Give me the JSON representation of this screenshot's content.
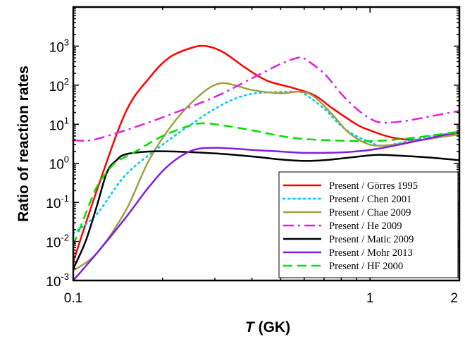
{
  "chart_data": {
    "type": "line",
    "xscale": "log",
    "yscale": "log",
    "xlim": [
      0.1,
      2
    ],
    "ylim": [
      0.001,
      10000
    ],
    "xlabel_italic": "T",
    "xlabel_rest": " (GK)",
    "ylabel": "Ratio of reaction rates",
    "grid": false,
    "legend_position": "bottom-right",
    "x_ticks": [
      {
        "value": 0.1,
        "label": "0.1"
      },
      {
        "value": 1,
        "label": "1"
      },
      {
        "value": 2,
        "label": "2"
      }
    ],
    "y_ticks": [
      {
        "value": 0.001,
        "base": "10",
        "exp": "-3"
      },
      {
        "value": 0.01,
        "base": "10",
        "exp": "-2"
      },
      {
        "value": 0.1,
        "base": "10",
        "exp": "-1"
      },
      {
        "value": 1,
        "base": "10",
        "exp": "0"
      },
      {
        "value": 10,
        "base": "10",
        "exp": "1"
      },
      {
        "value": 100,
        "base": "10",
        "exp": "2"
      },
      {
        "value": 1000,
        "base": "10",
        "exp": "3"
      }
    ],
    "series": [
      {
        "name": "Present / Görres 1995",
        "color": "#ff0000",
        "dash": "solid",
        "points": [
          [
            0.1,
            0.003
          ],
          [
            0.12,
            0.2
          ],
          [
            0.15,
            20
          ],
          [
            0.18,
            150
          ],
          [
            0.21,
            500
          ],
          [
            0.25,
            900
          ],
          [
            0.28,
            1000
          ],
          [
            0.32,
            700
          ],
          [
            0.38,
            280
          ],
          [
            0.45,
            130
          ],
          [
            0.55,
            85
          ],
          [
            0.65,
            55
          ],
          [
            0.75,
            25
          ],
          [
            0.9,
            10
          ],
          [
            1.0,
            7
          ],
          [
            1.2,
            4.5
          ],
          [
            1.5,
            4
          ],
          [
            2.0,
            6
          ]
        ]
      },
      {
        "name": "Present / Chen 2001",
        "color": "#00c8ff",
        "dash": "dotted",
        "points": [
          [
            0.1,
            0.016
          ],
          [
            0.12,
            0.05
          ],
          [
            0.15,
            0.5
          ],
          [
            0.2,
            3
          ],
          [
            0.25,
            10
          ],
          [
            0.3,
            25
          ],
          [
            0.35,
            45
          ],
          [
            0.4,
            60
          ],
          [
            0.45,
            65
          ],
          [
            0.55,
            68
          ],
          [
            0.6,
            60
          ],
          [
            0.7,
            25
          ],
          [
            0.8,
            9
          ],
          [
            0.9,
            5
          ],
          [
            1.0,
            3.5
          ],
          [
            1.1,
            2.8
          ],
          [
            1.3,
            3.5
          ],
          [
            1.6,
            5
          ],
          [
            2.0,
            6
          ]
        ]
      },
      {
        "name": "Present / Chae 2009",
        "color": "#a0a040",
        "dash": "solid",
        "points": [
          [
            0.1,
            0.0018
          ],
          [
            0.12,
            0.005
          ],
          [
            0.15,
            0.06
          ],
          [
            0.18,
            1.2
          ],
          [
            0.22,
            12
          ],
          [
            0.27,
            60
          ],
          [
            0.31,
            110
          ],
          [
            0.35,
            100
          ],
          [
            0.4,
            75
          ],
          [
            0.5,
            62
          ],
          [
            0.58,
            68
          ],
          [
            0.65,
            50
          ],
          [
            0.75,
            17
          ],
          [
            0.85,
            6
          ],
          [
            1.0,
            3
          ],
          [
            1.2,
            3
          ],
          [
            1.5,
            4
          ],
          [
            2.0,
            5.5
          ]
        ]
      },
      {
        "name": "Present / He 2009",
        "color": "#e020e0",
        "dash": "dashdot",
        "points": [
          [
            0.1,
            3.9
          ],
          [
            0.11,
            3.8
          ],
          [
            0.12,
            4.2
          ],
          [
            0.15,
            7
          ],
          [
            0.2,
            15
          ],
          [
            0.3,
            50
          ],
          [
            0.4,
            150
          ],
          [
            0.5,
            350
          ],
          [
            0.57,
            500
          ],
          [
            0.6,
            480
          ],
          [
            0.7,
            200
          ],
          [
            0.8,
            60
          ],
          [
            0.9,
            25
          ],
          [
            1.0,
            14
          ],
          [
            1.1,
            11
          ],
          [
            1.3,
            12
          ],
          [
            1.6,
            16
          ],
          [
            2.0,
            22
          ]
        ]
      },
      {
        "name": "Present / Matic 2009",
        "color": "#000000",
        "dash": "solid",
        "points": [
          [
            0.1,
            0.002
          ],
          [
            0.11,
            0.01
          ],
          [
            0.12,
            0.08
          ],
          [
            0.13,
            0.6
          ],
          [
            0.14,
            1.2
          ],
          [
            0.15,
            1.7
          ],
          [
            0.18,
            2.0
          ],
          [
            0.22,
            2.0
          ],
          [
            0.3,
            1.8
          ],
          [
            0.4,
            1.5
          ],
          [
            0.5,
            1.25
          ],
          [
            0.6,
            1.15
          ],
          [
            0.7,
            1.2
          ],
          [
            0.85,
            1.4
          ],
          [
            1.0,
            1.6
          ],
          [
            1.1,
            1.65
          ],
          [
            1.3,
            1.55
          ],
          [
            1.6,
            1.4
          ],
          [
            2.0,
            1.2
          ]
        ]
      },
      {
        "name": "Present / Mohr 2013",
        "color": "#8020e0",
        "dash": "solid",
        "points": [
          [
            0.1,
            0.001
          ],
          [
            0.12,
            0.005
          ],
          [
            0.15,
            0.04
          ],
          [
            0.18,
            0.25
          ],
          [
            0.21,
            0.9
          ],
          [
            0.25,
            2.1
          ],
          [
            0.3,
            2.5
          ],
          [
            0.4,
            2.2
          ],
          [
            0.5,
            2.0
          ],
          [
            0.6,
            1.85
          ],
          [
            0.8,
            1.9
          ],
          [
            1.0,
            2.2
          ],
          [
            1.2,
            2.8
          ],
          [
            1.5,
            4
          ],
          [
            2.0,
            6.5
          ]
        ]
      },
      {
        "name": "Present / HF 2000",
        "color": "#00e000",
        "dash": "dashed",
        "points": [
          [
            0.1,
            0.008
          ],
          [
            0.11,
            0.05
          ],
          [
            0.12,
            0.25
          ],
          [
            0.13,
            0.6
          ],
          [
            0.14,
            1.1
          ],
          [
            0.16,
            1.9
          ],
          [
            0.2,
            5
          ],
          [
            0.25,
            9.5
          ],
          [
            0.28,
            10.5
          ],
          [
            0.33,
            9
          ],
          [
            0.4,
            7
          ],
          [
            0.5,
            5
          ],
          [
            0.6,
            4.2
          ],
          [
            0.8,
            3.8
          ],
          [
            1.0,
            3.7
          ],
          [
            1.2,
            4
          ],
          [
            1.5,
            4.8
          ],
          [
            2.0,
            6.5
          ]
        ]
      }
    ]
  }
}
